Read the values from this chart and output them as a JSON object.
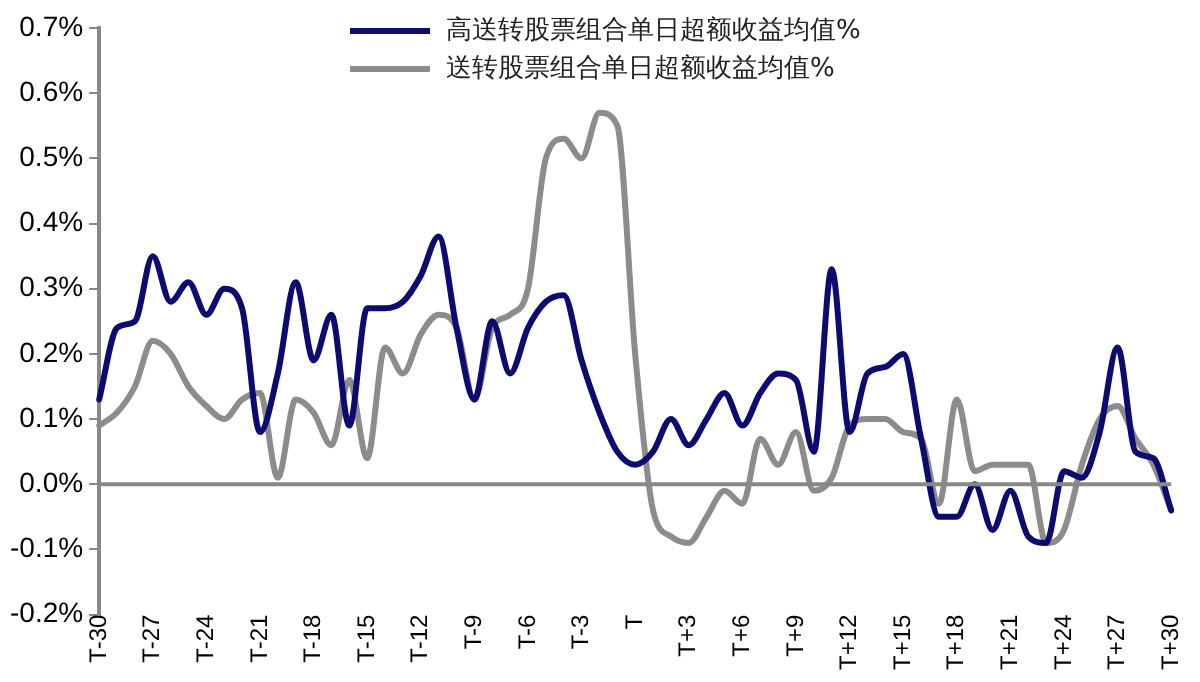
{
  "chart_data": {
    "type": "line",
    "categories": [
      "T-30",
      null,
      null,
      "T-27",
      null,
      null,
      "T-24",
      null,
      null,
      "T-21",
      null,
      null,
      "T-18",
      null,
      null,
      "T-15",
      null,
      null,
      "T-12",
      null,
      null,
      "T-9",
      null,
      null,
      "T-6",
      null,
      null,
      "T-3",
      null,
      null,
      "T",
      null,
      null,
      "T+3",
      null,
      null,
      "T+6",
      null,
      null,
      "T+9",
      null,
      null,
      "T+12",
      null,
      null,
      "T+15",
      null,
      null,
      "T+18",
      null,
      null,
      "T+21",
      null,
      null,
      "T+24",
      null,
      null,
      "T+27",
      null,
      null,
      "T+30"
    ],
    "series": [
      {
        "name": "高送转股票组合单日超额收益均值%",
        "color": "#0c0c70",
        "values": [
          0.13,
          0.24,
          0.25,
          0.35,
          0.28,
          0.31,
          0.26,
          0.3,
          0.27,
          0.08,
          0.17,
          0.31,
          0.19,
          0.26,
          0.09,
          0.27,
          0.27,
          0.28,
          0.32,
          0.38,
          0.24,
          0.13,
          0.25,
          0.17,
          0.24,
          0.28,
          0.29,
          0.19,
          0.11,
          0.05,
          0.03,
          0.05,
          0.1,
          0.06,
          0.1,
          0.14,
          0.09,
          0.14,
          0.17,
          0.16,
          0.05,
          0.33,
          0.08,
          0.17,
          0.18,
          0.2,
          0.07,
          -0.05,
          -0.05,
          0.0,
          -0.07,
          -0.01,
          -0.08,
          -0.09,
          0.02,
          0.01,
          0.08,
          0.21,
          0.05,
          0.04,
          -0.04
        ]
      },
      {
        "name": "送转股票组合单日超额收益均值%",
        "color": "#8c8c8c",
        "values": [
          0.09,
          0.11,
          0.15,
          0.22,
          0.2,
          0.15,
          0.12,
          0.1,
          0.13,
          0.14,
          0.01,
          0.13,
          0.11,
          0.06,
          0.16,
          0.04,
          0.21,
          0.17,
          0.23,
          0.26,
          0.24,
          0.13,
          0.24,
          0.26,
          0.3,
          0.5,
          0.53,
          0.5,
          0.57,
          0.55,
          0.2,
          -0.04,
          -0.08,
          -0.09,
          -0.05,
          -0.01,
          -0.03,
          0.07,
          0.03,
          0.08,
          -0.01,
          0.01,
          0.09,
          0.1,
          0.1,
          0.08,
          0.07,
          -0.03,
          0.13,
          0.02,
          0.03,
          0.03,
          0.03,
          -0.09,
          -0.07,
          0.03,
          0.1,
          0.12,
          0.07,
          0.03,
          -0.04
        ]
      }
    ],
    "ylim": [
      -0.2,
      0.7
    ],
    "yticks": [
      {
        "value": -0.2,
        "label": "-0.2%"
      },
      {
        "value": -0.1,
        "label": "-0.1%"
      },
      {
        "value": 0,
        "label": "0.0%"
      },
      {
        "value": 0.1,
        "label": "0.1%"
      },
      {
        "value": 0.2,
        "label": "0.2%"
      },
      {
        "value": 0.3,
        "label": "0.3%"
      },
      {
        "value": 0.4,
        "label": "0.4%"
      },
      {
        "value": 0.5,
        "label": "0.5%"
      },
      {
        "value": 0.6,
        "label": "0.6%"
      },
      {
        "value": 0.7,
        "label": "0.7%"
      }
    ],
    "ref_lines": [
      {
        "axis": "y",
        "value": 0,
        "color": "#888888"
      }
    ],
    "grid": false,
    "legend": "top right",
    "marker": "none",
    "line_style": "solid"
  }
}
